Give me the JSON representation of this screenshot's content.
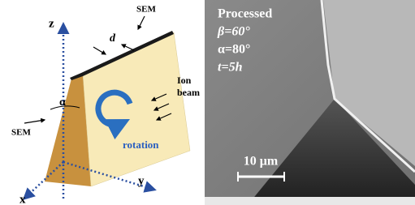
{
  "diagram": {
    "labels": {
      "z": "z",
      "x": "x",
      "y": "y",
      "d": "d",
      "sem_top": "SEM",
      "sem_left": "SEM",
      "ion_beam": [
        "Ion",
        "beam"
      ],
      "rotation": "rotation",
      "alpha": "α"
    }
  },
  "image": {
    "caption": [
      "Processed",
      "β=60°",
      "α=80°",
      "t=5h"
    ],
    "scale_bar": "10 μm"
  }
}
